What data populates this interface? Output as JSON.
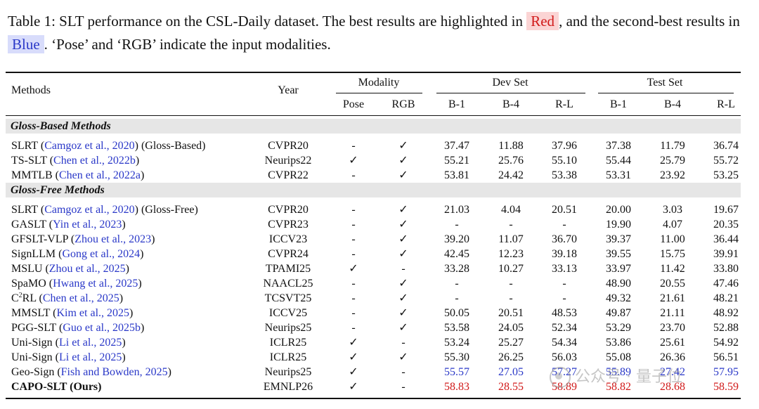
{
  "caption": {
    "text_before": "Table 1: SLT performance on the CSL-Daily dataset. The best results are highlighted in",
    "red_label": "Red",
    "text_middle": ", and the second-best results in",
    "blue_label": "Blue",
    "text_after": ". ‘Pose’ and ‘RGB’ indicate the input modalities."
  },
  "header": {
    "methods": "Methods",
    "year": "Year",
    "modality": "Modality",
    "dev_set": "Dev Set",
    "test_set": "Test Set",
    "pose": "Pose",
    "rgb": "RGB",
    "metrics": [
      "B-1",
      "B-4",
      "R-L",
      "B-1",
      "B-4",
      "R-L"
    ]
  },
  "sections": [
    {
      "label": "Gloss-Based Methods",
      "rows": [
        {
          "name": "SLRT",
          "cite": "Camgoz et al., 2020",
          "suffix": "(Gloss-Based)",
          "year": "CVPR20",
          "pose": "-",
          "rgb": "✓",
          "values": [
            "37.47",
            "11.88",
            "37.96",
            "37.38",
            "11.79",
            "36.74"
          ]
        },
        {
          "name": "TS-SLT",
          "cite": "Chen et al., 2022b",
          "suffix": "",
          "year": "Neurips22",
          "pose": "✓",
          "rgb": "✓",
          "values": [
            "55.21",
            "25.76",
            "55.10",
            "55.44",
            "25.79",
            "55.72"
          ]
        },
        {
          "name": "MMTLB",
          "cite": "Chen et al., 2022a",
          "suffix": "",
          "year": "CVPR22",
          "pose": "-",
          "rgb": "✓",
          "values": [
            "53.81",
            "24.42",
            "53.38",
            "53.31",
            "23.92",
            "53.25"
          ]
        }
      ]
    },
    {
      "label": "Gloss-Free Methods",
      "rows": [
        {
          "name": "SLRT",
          "cite": "Camgoz et al., 2020",
          "suffix": "(Gloss-Free)",
          "year": "CVPR20",
          "pose": "-",
          "rgb": "✓",
          "values": [
            "21.03",
            "4.04",
            "20.51",
            "20.00",
            "3.03",
            "19.67"
          ]
        },
        {
          "name": "GASLT",
          "cite": "Yin et al., 2023",
          "suffix": "",
          "year": "CVPR23",
          "pose": "-",
          "rgb": "✓",
          "values": [
            "-",
            "-",
            "-",
            "19.90",
            "4.07",
            "20.35"
          ]
        },
        {
          "name": "GFSLT-VLP",
          "cite": "Zhou et al., 2023",
          "suffix": "",
          "year": "ICCV23",
          "pose": "-",
          "rgb": "✓",
          "values": [
            "39.20",
            "11.07",
            "36.70",
            "39.37",
            "11.00",
            "36.44"
          ]
        },
        {
          "name": "SignLLM",
          "cite": "Gong et al., 2024",
          "suffix": "",
          "year": "CVPR24",
          "pose": "-",
          "rgb": "✓",
          "values": [
            "42.45",
            "12.23",
            "39.18",
            "39.55",
            "15.75",
            "39.91"
          ]
        },
        {
          "name": "MSLU",
          "cite": "Zhou et al., 2025",
          "suffix": "",
          "year": "TPAMI25",
          "pose": "✓",
          "rgb": "-",
          "values": [
            "33.28",
            "10.27",
            "33.13",
            "33.97",
            "11.42",
            "33.80"
          ]
        },
        {
          "name": "SpaMO",
          "cite": "Hwang et al., 2025",
          "suffix": "",
          "year": "NAACL25",
          "pose": "-",
          "rgb": "✓",
          "values": [
            "-",
            "-",
            "-",
            "48.90",
            "20.55",
            "47.46"
          ]
        },
        {
          "name": "C",
          "sup": "2",
          "name_tail": "RL",
          "cite": "Chen et al., 2025",
          "suffix": "",
          "year": "TCSVT25",
          "pose": "-",
          "rgb": "✓",
          "values": [
            "-",
            "-",
            "-",
            "49.32",
            "21.61",
            "48.21"
          ]
        },
        {
          "name": "MMSLT",
          "cite": "Kim et al., 2025",
          "suffix": "",
          "year": "ICCV25",
          "pose": "-",
          "rgb": "✓",
          "values": [
            "50.05",
            "20.51",
            "48.53",
            "49.87",
            "21.11",
            "48.92"
          ]
        },
        {
          "name": "PGG-SLT",
          "cite": "Guo et al., 2025b",
          "suffix": "",
          "year": "Neurips25",
          "pose": "-",
          "rgb": "✓",
          "values": [
            "53.58",
            "24.05",
            "52.34",
            "53.29",
            "23.70",
            "52.88"
          ]
        },
        {
          "name": "Uni-Sign",
          "cite": "Li et al., 2025",
          "suffix": "",
          "year": "ICLR25",
          "pose": "✓",
          "rgb": "-",
          "values": [
            "53.24",
            "25.27",
            "54.34",
            "53.86",
            "25.61",
            "54.92"
          ]
        },
        {
          "name": "Uni-Sign",
          "cite": "Li et al., 2025",
          "suffix": "",
          "year": "ICLR25",
          "pose": "✓",
          "rgb": "✓",
          "values": [
            "55.30",
            "26.25",
            "56.03",
            "55.08",
            "26.36",
            "56.51"
          ]
        },
        {
          "name": "Geo-Sign",
          "cite": "Fish and Bowden, 2025",
          "suffix": "",
          "year": "Neurips25",
          "pose": "✓",
          "rgb": "-",
          "values": [
            "55.57",
            "27.05",
            "57.27",
            "55.89",
            "27.42",
            "57.95"
          ],
          "style": "second"
        },
        {
          "name": "CAPO-SLT (Ours)",
          "cite": "",
          "suffix": "",
          "year": "EMNLP26",
          "pose": "✓",
          "rgb": "-",
          "values": [
            "58.83",
            "28.55",
            "58.89",
            "58.82",
            "28.68",
            "58.59"
          ],
          "style": "best",
          "bold": true
        }
      ]
    }
  ],
  "colors": {
    "best": "#d11a1a",
    "second": "#2a38c8",
    "section_band": "#e6e6e6"
  },
  "watermark": "公众号 · 量子位"
}
